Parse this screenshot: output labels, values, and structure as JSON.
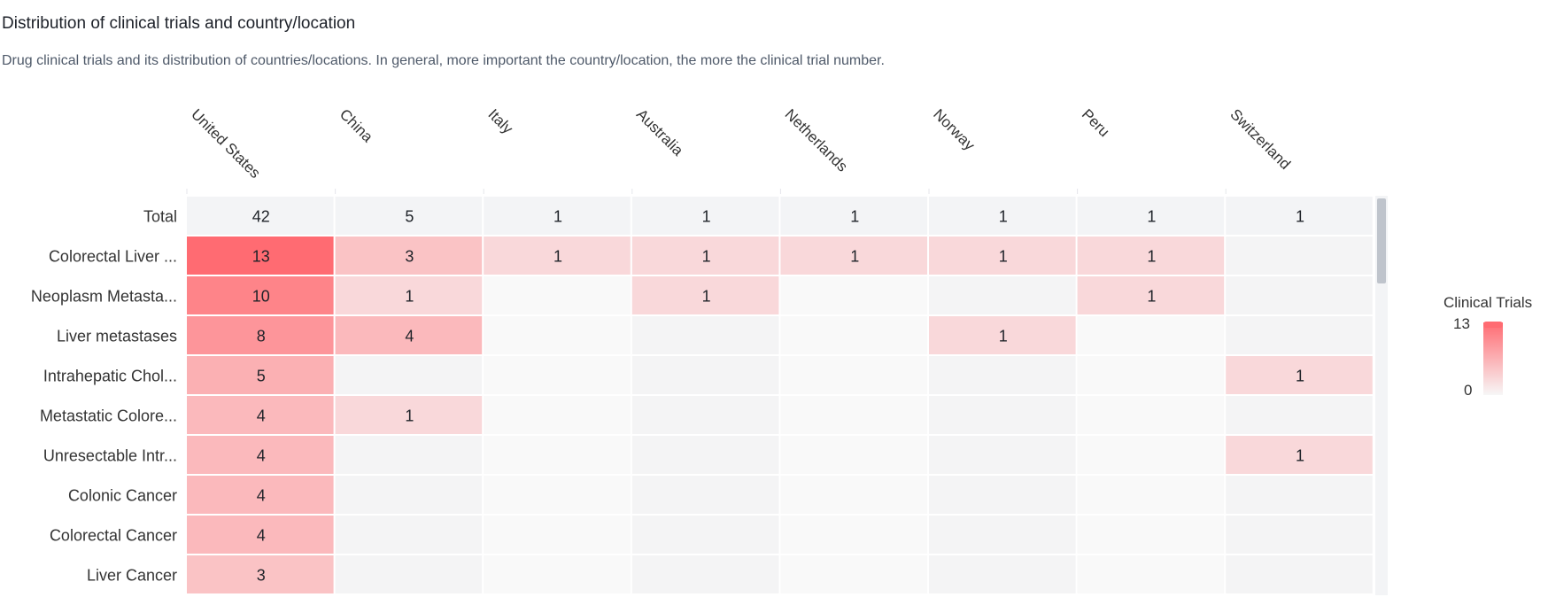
{
  "header": {
    "title": "Distribution of clinical trials and country/location",
    "subtitle": "Drug clinical trials and its distribution of countries/locations. In general, more important the country/location, the more the clinical trial number."
  },
  "legend": {
    "title": "Clinical Trials",
    "max_label": "13",
    "min_label": "0"
  },
  "colors": {
    "high": "#ff6b72",
    "low": "#f7f7f7",
    "total_row": "#f3f4f6",
    "text": "#1f2329"
  },
  "chart_data": {
    "type": "heatmap",
    "title": "Distribution of clinical trials and country/location",
    "x_categories": [
      "United States",
      "China",
      "Italy",
      "Australia",
      "Netherlands",
      "Norway",
      "Peru",
      "Switzerland"
    ],
    "y_categories": [
      "Total",
      "Colorectal Liver ...",
      "Neoplasm Metasta...",
      "Liver metastases",
      "Intrahepatic Chol...",
      "Metastatic Colore...",
      "Unresectable Intr...",
      "Colonic Cancer",
      "Colorectal Cancer",
      "Liver Cancer"
    ],
    "values": [
      [
        42,
        5,
        1,
        1,
        1,
        1,
        1,
        1
      ],
      [
        13,
        3,
        1,
        1,
        1,
        1,
        1,
        null
      ],
      [
        10,
        1,
        null,
        1,
        null,
        null,
        1,
        null
      ],
      [
        8,
        4,
        null,
        null,
        null,
        1,
        null,
        null
      ],
      [
        5,
        null,
        null,
        null,
        null,
        null,
        null,
        1
      ],
      [
        4,
        1,
        null,
        null,
        null,
        null,
        null,
        null
      ],
      [
        4,
        null,
        null,
        null,
        null,
        null,
        null,
        1
      ],
      [
        4,
        null,
        null,
        null,
        null,
        null,
        null,
        null
      ],
      [
        4,
        null,
        null,
        null,
        null,
        null,
        null,
        null
      ],
      [
        3,
        null,
        null,
        null,
        null,
        null,
        null,
        null
      ]
    ],
    "color_range": [
      0,
      13
    ],
    "legend_title": "Clinical Trials"
  }
}
